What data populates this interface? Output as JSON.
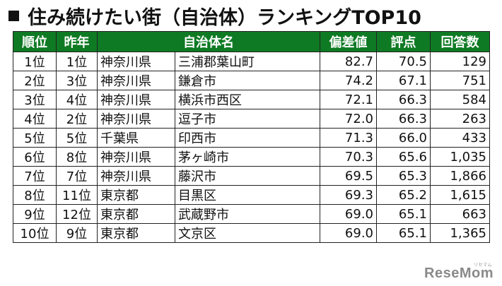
{
  "title": "住み続けたい街（自治体）ランキングTOP10",
  "headers": {
    "rank": "順位",
    "prev": "昨年",
    "municipality": "自治体名",
    "deviation": "偏差値",
    "score": "評点",
    "responses": "回答数"
  },
  "rows": [
    {
      "rank": "1位",
      "prev": "1位",
      "pref": "神奈川県",
      "city": "三浦郡葉山町",
      "deviation": "82.7",
      "score": "70.5",
      "responses": "129"
    },
    {
      "rank": "2位",
      "prev": "3位",
      "pref": "神奈川県",
      "city": "鎌倉市",
      "deviation": "74.2",
      "score": "67.1",
      "responses": "751"
    },
    {
      "rank": "3位",
      "prev": "4位",
      "pref": "神奈川県",
      "city": "横浜市西区",
      "deviation": "72.1",
      "score": "66.3",
      "responses": "584"
    },
    {
      "rank": "4位",
      "prev": "2位",
      "pref": "神奈川県",
      "city": "逗子市",
      "deviation": "72.0",
      "score": "66.3",
      "responses": "263"
    },
    {
      "rank": "5位",
      "prev": "5位",
      "pref": "千葉県",
      "city": "印西市",
      "deviation": "71.3",
      "score": "66.0",
      "responses": "433"
    },
    {
      "rank": "6位",
      "prev": "8位",
      "pref": "神奈川県",
      "city": "茅ヶ崎市",
      "deviation": "70.3",
      "score": "65.6",
      "responses": "1,035"
    },
    {
      "rank": "7位",
      "prev": "7位",
      "pref": "神奈川県",
      "city": "藤沢市",
      "deviation": "69.5",
      "score": "65.3",
      "responses": "1,866"
    },
    {
      "rank": "8位",
      "prev": "11位",
      "pref": "東京都",
      "city": "目黒区",
      "deviation": "69.3",
      "score": "65.2",
      "responses": "1,615"
    },
    {
      "rank": "9位",
      "prev": "12位",
      "pref": "東京都",
      "city": "武蔵野市",
      "deviation": "69.0",
      "score": "65.1",
      "responses": "663"
    },
    {
      "rank": "10位",
      "prev": "9位",
      "pref": "東京都",
      "city": "文京区",
      "deviation": "69.0",
      "score": "65.1",
      "responses": "1,365"
    }
  ],
  "brand": {
    "logo_text": "ReseMom",
    "sub_text": "リセマム"
  },
  "colors": {
    "header_bg": "#0f7a24",
    "header_text": "#ffffff"
  }
}
